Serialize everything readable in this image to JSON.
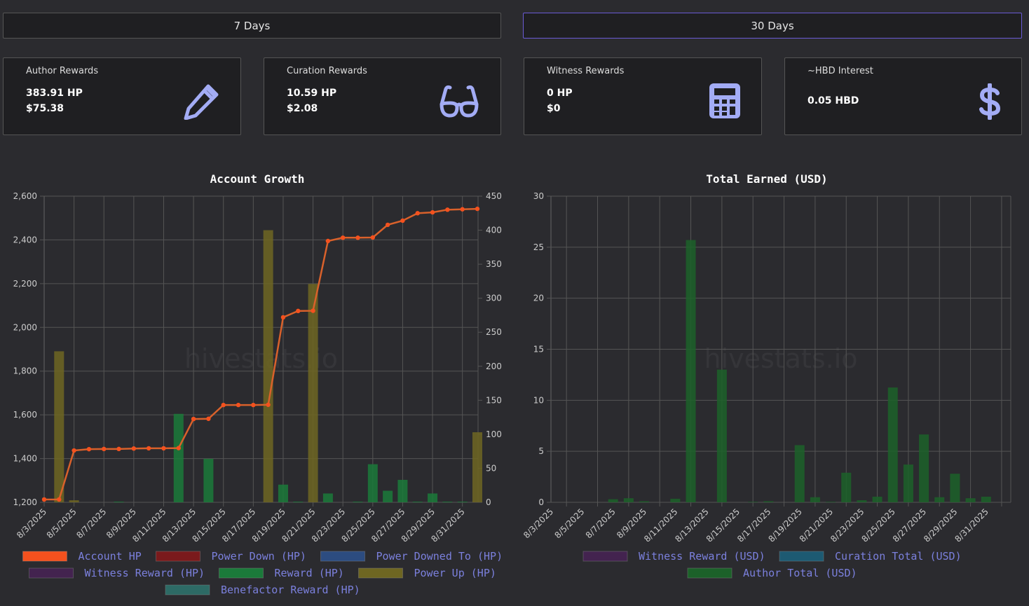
{
  "buttons": [
    "7 Days",
    "30 Days"
  ],
  "cards": [
    {
      "title": "Author Rewards",
      "lines": [
        "383.91 HP",
        "$75.38"
      ]
    },
    {
      "title": "Curation Rewards",
      "lines": [
        "10.59 HP",
        "$2.08"
      ]
    },
    {
      "title": "Witness Rewards",
      "lines": [
        "0 HP",
        "$0"
      ]
    },
    {
      "title": "~HBD Interest",
      "lines": [
        "0.05 HBD"
      ]
    }
  ],
  "chart_data": [
    {
      "type": "bar",
      "title": "Account Growth",
      "watermark": "hivestats.io",
      "categories": [
        "8/3/2025",
        null,
        "8/5/2025",
        null,
        "8/7/2025",
        null,
        "8/9/2025",
        null,
        "8/11/2025",
        null,
        "8/13/2025",
        null,
        "8/15/2025",
        null,
        "8/17/2025",
        null,
        "8/19/2025",
        null,
        "8/21/2025",
        null,
        "8/23/2025",
        null,
        "8/25/2025",
        null,
        "8/27/2025",
        null,
        "8/29/2025",
        null,
        "8/31/2025",
        null
      ],
      "ylim": [
        1200,
        2600
      ],
      "yticks": [
        {
          "value": 1200,
          "label": "1,200"
        },
        {
          "value": 1400,
          "label": "1,400"
        },
        {
          "value": 1600,
          "label": "1,600"
        },
        {
          "value": 1800,
          "label": "1,800"
        },
        {
          "value": 2000,
          "label": "2,000"
        },
        {
          "value": 2200,
          "label": "2,200"
        },
        {
          "value": 2400,
          "label": "2,400"
        },
        {
          "value": 2600,
          "label": "2,600"
        }
      ],
      "y2lim": [
        0,
        450
      ],
      "y2ticks": [
        0,
        50,
        100,
        150,
        200,
        250,
        300,
        350,
        400,
        450
      ],
      "grid": true,
      "series": [
        {
          "name": "Account HP",
          "type": "line",
          "axis": "y",
          "color": "#f4511e",
          "values": [
            1213,
            1213,
            1437,
            1443,
            1444,
            1444,
            1446,
            1447,
            1447,
            1448,
            1581,
            1582,
            1645,
            1645,
            1645,
            1646,
            2046,
            2075,
            2076,
            2395,
            2410,
            2410,
            2411,
            2469,
            2488,
            2522,
            2526,
            2538,
            2540,
            2542
          ]
        },
        {
          "name": "Power Down (HP)",
          "axis": "y2",
          "color": "#7a1a1c",
          "values": [
            0,
            0,
            0,
            0,
            0,
            0,
            0,
            0,
            0,
            0,
            0,
            0,
            0,
            0,
            0,
            0,
            0,
            0,
            0,
            0,
            0,
            0,
            0,
            0,
            0,
            0,
            0,
            0,
            0,
            0
          ]
        },
        {
          "name": "Power Downed To (HP)",
          "axis": "y2",
          "color": "#2c4c80",
          "values": [
            0,
            0,
            0,
            0,
            0,
            0,
            0,
            0,
            0,
            0,
            0,
            0,
            0,
            0,
            0,
            0,
            0,
            0,
            0,
            0,
            0,
            0,
            0,
            0,
            0,
            0,
            0,
            0,
            0,
            0
          ]
        },
        {
          "name": "Witness Reward (HP)",
          "axis": "y2",
          "color": "#43234f",
          "values": [
            0,
            0,
            0,
            0,
            0,
            0,
            0,
            0,
            0,
            0,
            0,
            0,
            0,
            0,
            0,
            0,
            0,
            0,
            0,
            0,
            0,
            0,
            0,
            0,
            0,
            0,
            0,
            0,
            0,
            0
          ]
        },
        {
          "name": "Reward (HP)",
          "axis": "y2",
          "color": "#1b7a3a",
          "values": [
            0,
            0,
            0,
            0,
            0,
            1,
            0,
            0,
            0,
            130,
            0,
            64,
            0,
            0,
            0,
            0,
            26,
            1,
            0,
            13,
            0,
            1,
            56,
            17,
            33,
            1,
            13,
            1,
            1,
            0
          ]
        },
        {
          "name": "Power Up (HP)",
          "axis": "y2",
          "color": "#6e6622",
          "values": [
            0,
            222,
            3,
            0,
            0,
            0,
            0,
            0,
            0,
            0,
            0,
            0,
            0,
            0,
            0,
            400,
            0,
            0,
            321,
            0,
            0,
            0,
            0,
            0,
            0,
            0,
            0,
            0,
            0,
            103
          ]
        },
        {
          "name": "Benefactor Reward (HP)",
          "axis": "y2",
          "color": "#2d6a65",
          "values": [
            0,
            0,
            0,
            0,
            0,
            0,
            0,
            0,
            0,
            0,
            0,
            0,
            0,
            0,
            0,
            0,
            0,
            0,
            0,
            0,
            0,
            0,
            0,
            0,
            0,
            0,
            0,
            0,
            0,
            0
          ]
        }
      ]
    },
    {
      "type": "bar",
      "title": "Total Earned (USD)",
      "watermark": "hivestats.io",
      "categories": [
        "8/3/2025",
        null,
        "8/5/2025",
        null,
        "8/7/2025",
        null,
        "8/9/2025",
        null,
        "8/11/2025",
        null,
        "8/13/2025",
        null,
        "8/15/2025",
        null,
        "8/17/2025",
        null,
        "8/19/2025",
        null,
        "8/21/2025",
        null,
        "8/23/2025",
        null,
        "8/25/2025",
        null,
        "8/27/2025",
        null,
        "8/29/2025",
        null,
        "8/31/2025",
        null
      ],
      "ylim": [
        0,
        30
      ],
      "yticks": [
        0,
        5,
        10,
        15,
        20,
        25,
        30
      ],
      "grid": true,
      "series": [
        {
          "name": "Witness Reward (USD)",
          "axis": "y",
          "color": "#43234f",
          "values": [
            0,
            0,
            0,
            0,
            0,
            0,
            0,
            0,
            0,
            0,
            0,
            0,
            0,
            0,
            0,
            0,
            0,
            0,
            0,
            0,
            0,
            0,
            0,
            0,
            0,
            0,
            0,
            0,
            0,
            0
          ]
        },
        {
          "name": "Curation Total (USD)",
          "axis": "y",
          "color": "#1d5a72",
          "values": [
            0,
            0,
            0,
            0,
            0,
            0,
            0,
            0,
            0,
            0,
            0,
            0,
            0,
            0,
            0,
            0,
            0,
            0,
            0,
            0,
            0,
            0,
            0,
            0,
            0,
            0,
            0,
            0,
            0,
            0
          ]
        },
        {
          "name": "Author Total (USD)",
          "axis": "y",
          "color": "#1c6129",
          "values": [
            0,
            0,
            0,
            0,
            0.3,
            0.4,
            0.1,
            0,
            0.35,
            25.7,
            0,
            13,
            0,
            0.05,
            0.1,
            0,
            5.6,
            0.5,
            0.05,
            2.9,
            0.2,
            0.55,
            11.25,
            3.7,
            6.65,
            0.5,
            2.8,
            0.4,
            0.55,
            0
          ]
        }
      ]
    }
  ]
}
